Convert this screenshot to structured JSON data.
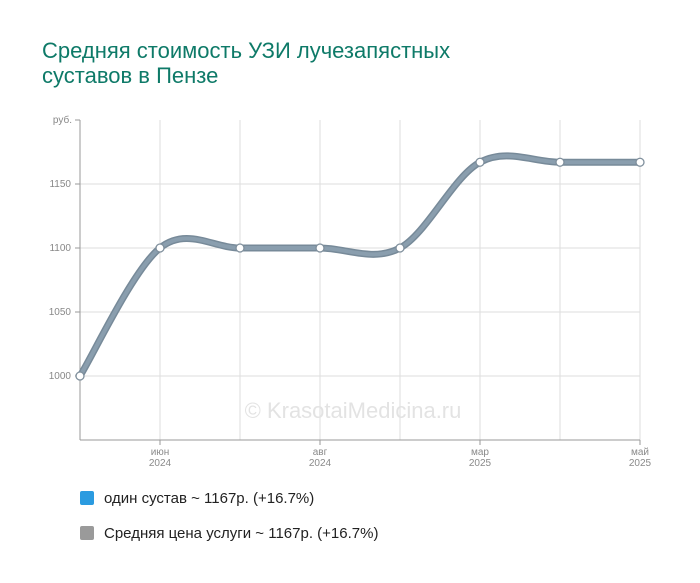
{
  "title_line1": "Средняя стоимость УЗИ лучезапястных",
  "title_line2": "суставов в Пензе",
  "watermark": "© KrasotaiMedicina.ru",
  "chart_data": {
    "type": "line",
    "y_unit_label": "руб.",
    "y_ticks": [
      1000,
      1050,
      1100,
      1150
    ],
    "ylim": [
      950,
      1200
    ],
    "x_tick_labels": [
      {
        "index": 1,
        "month": "июн",
        "year": "2024"
      },
      {
        "index": 3,
        "month": "авг",
        "year": "2024"
      },
      {
        "index": 5,
        "month": "мар",
        "year": "2025"
      },
      {
        "index": 7,
        "month": "май",
        "year": "2025"
      }
    ],
    "series": [
      {
        "name": "Средняя цена услуги",
        "values": [
          1000,
          1100,
          1100,
          1100,
          1100,
          1167,
          1167,
          1167
        ],
        "color": "#8a9eae"
      }
    ],
    "grid": true
  },
  "legend": [
    {
      "label": "один сустав ~ 1167р. (+16.7%)",
      "color": "#2b9be0"
    },
    {
      "label": "Средняя цена услуги ~ 1167р. (+16.7%)",
      "color": "#9a9a9a"
    }
  ]
}
